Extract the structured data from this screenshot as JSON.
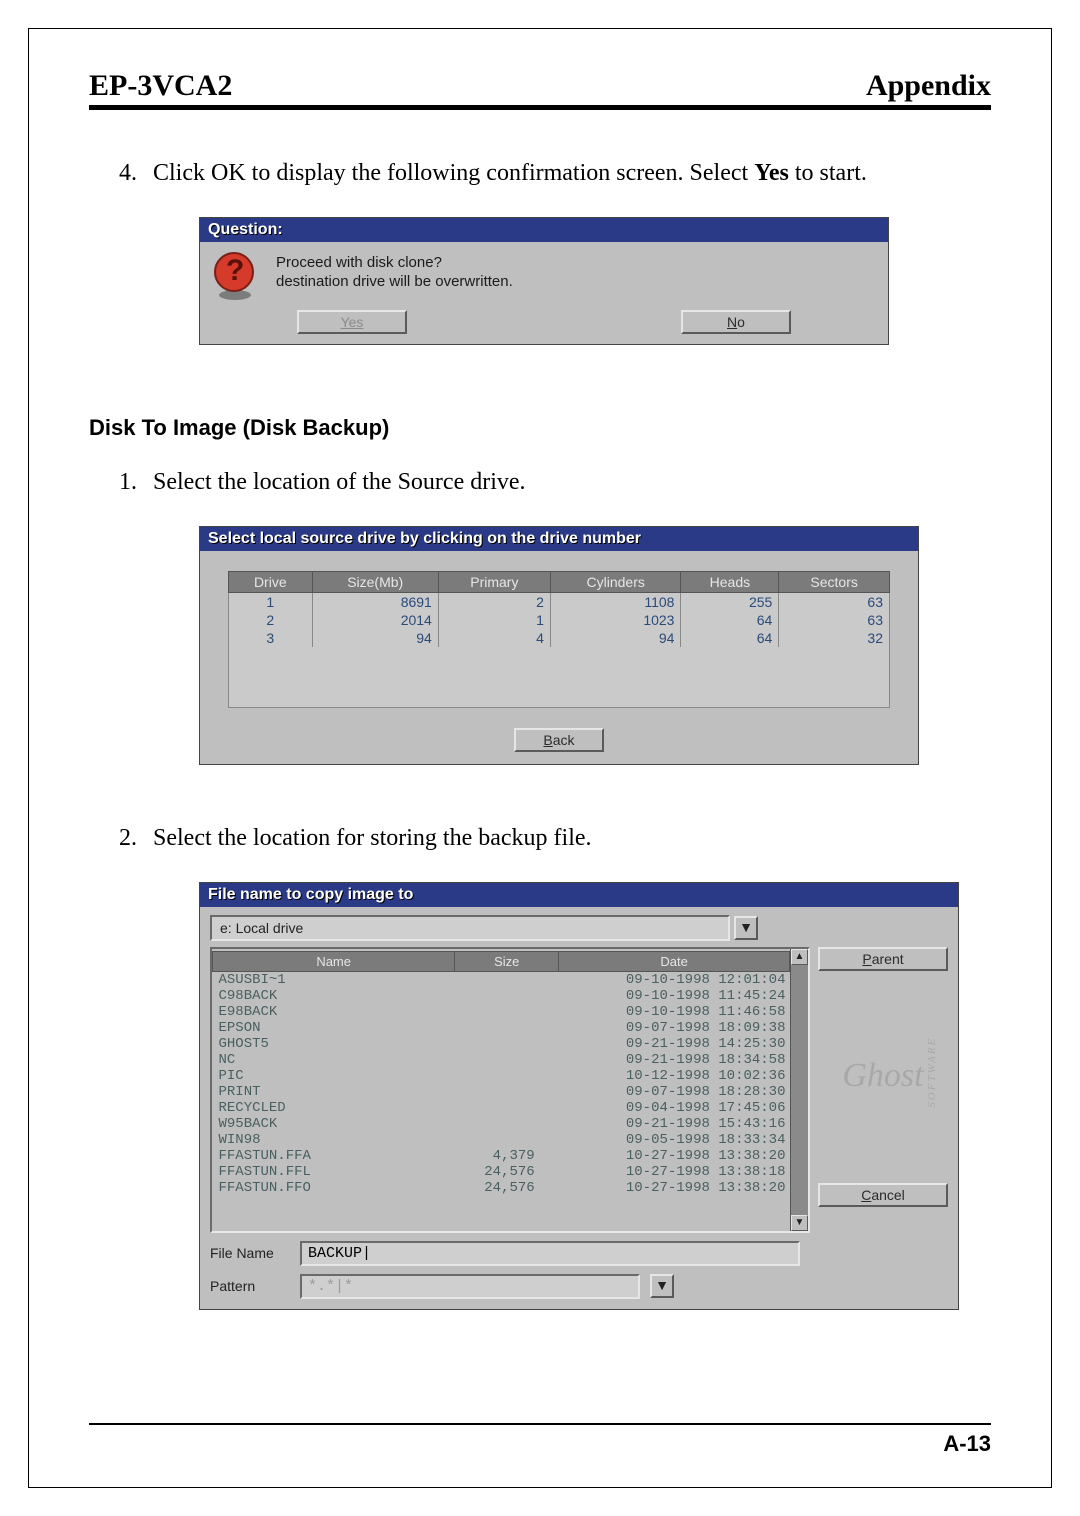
{
  "header": {
    "left": "EP-3VCA2",
    "right": "Appendix"
  },
  "step4": {
    "num": "4.",
    "text_a": "Click OK to display the following confirmation screen.  Select ",
    "bold": "Yes",
    "text_b": " to start."
  },
  "dialog1": {
    "title": "Question:",
    "line1": "Proceed with disk clone?",
    "line2": "destination drive will be overwritten.",
    "yes": "Yes",
    "no_u": "N",
    "no_rest": "o"
  },
  "section": "Disk To Image (Disk Backup)",
  "step1": {
    "num": "1.",
    "text": "Select the location of the Source drive."
  },
  "dialog2": {
    "title": "Select local source drive by clicking on the drive number",
    "headers": [
      "Drive",
      "Size(Mb)",
      "Primary",
      "Cylinders",
      "Heads",
      "Sectors"
    ],
    "rows": [
      [
        "1",
        "8691",
        "2",
        "1108",
        "255",
        "63"
      ],
      [
        "2",
        "2014",
        "1",
        "1023",
        "64",
        "63"
      ],
      [
        "3",
        "94",
        "4",
        "94",
        "64",
        "32"
      ]
    ],
    "back_u": "B",
    "back_rest": "ack"
  },
  "step2": {
    "num": "2.",
    "text": "Select the location for storing the backup file."
  },
  "dialog3": {
    "title": "File name to copy image to",
    "drive": "e: Local drive",
    "headers": {
      "name": "Name",
      "size": "Size",
      "date": "Date"
    },
    "files": [
      {
        "n": "ASUSBI~1",
        "s": "",
        "d": "09-10-1998 12:01:04"
      },
      {
        "n": "C98BACK",
        "s": "",
        "d": "09-10-1998 11:45:24"
      },
      {
        "n": "E98BACK",
        "s": "",
        "d": "09-10-1998 11:46:58"
      },
      {
        "n": "EPSON",
        "s": "",
        "d": "09-07-1998 18:09:38"
      },
      {
        "n": "GHOST5",
        "s": "",
        "d": "09-21-1998 14:25:30"
      },
      {
        "n": "NC",
        "s": "",
        "d": "09-21-1998 18:34:58"
      },
      {
        "n": "PIC",
        "s": "",
        "d": "10-12-1998 10:02:36"
      },
      {
        "n": "PRINT",
        "s": "",
        "d": "09-07-1998 18:28:30"
      },
      {
        "n": "RECYCLED",
        "s": "",
        "d": "09-04-1998 17:45:06"
      },
      {
        "n": "W95BACK",
        "s": "",
        "d": "09-21-1998 15:43:16"
      },
      {
        "n": "WIN98",
        "s": "",
        "d": "09-05-1998 18:33:34"
      },
      {
        "n": "FFASTUN.FFA",
        "s": "4,379",
        "d": "10-27-1998 13:38:20"
      },
      {
        "n": "FFASTUN.FFL",
        "s": "24,576",
        "d": "10-27-1998 13:38:18"
      },
      {
        "n": "FFASTUN.FFO",
        "s": "24,576",
        "d": "10-27-1998 13:38:20"
      }
    ],
    "parent_u": "P",
    "parent_rest": "arent",
    "cancel_u": "C",
    "cancel_rest": "ancel",
    "filename_label": "File Name",
    "filename_value": "BACKUP|",
    "pattern_label": "Pattern",
    "pattern_value": "*.*|*",
    "ghost": "Ghost",
    "ghost_soft": "SOFTWARE"
  },
  "pagenum": "A-13"
}
